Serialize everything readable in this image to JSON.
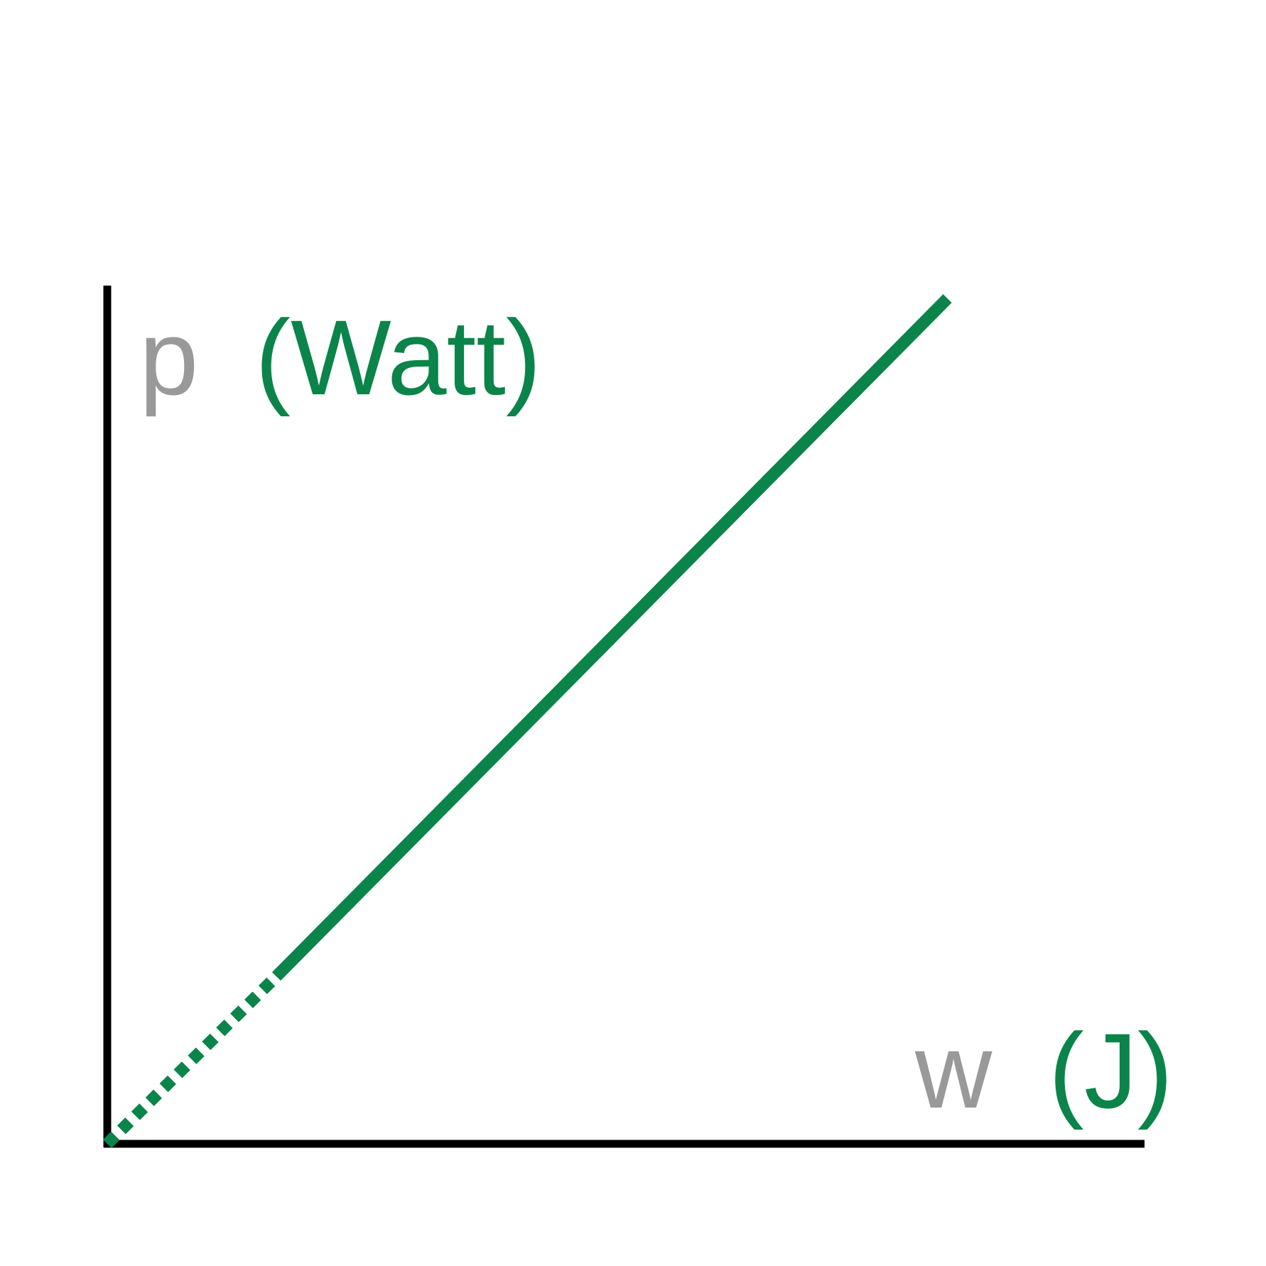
{
  "colors": {
    "series": "#0b8449",
    "variable": "#999999",
    "axis": "#000000"
  },
  "chart_data": {
    "type": "line",
    "title": "",
    "xlabel": {
      "variable": "w",
      "unit": "(J)"
    },
    "ylabel": {
      "variable": "p",
      "unit": "(Watt)"
    },
    "xlim": [
      0,
      1
    ],
    "ylim": [
      0,
      1
    ],
    "grid": false,
    "legend": "none",
    "series": [
      {
        "style": "dotted",
        "x": [
          0,
          0.163
        ],
        "y": [
          0,
          0.195
        ]
      },
      {
        "style": "solid",
        "x": [
          0.163,
          0.81
        ],
        "y": [
          0.195,
          0.985
        ]
      }
    ]
  }
}
